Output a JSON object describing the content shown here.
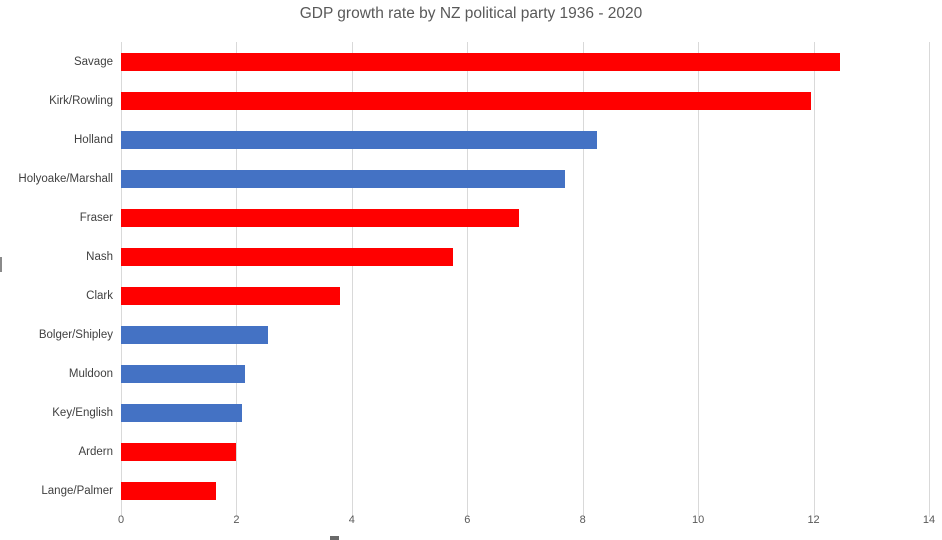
{
  "page": {
    "background": "#ffffff"
  },
  "chart_data": {
    "type": "bar",
    "orientation": "horizontal",
    "title": "GDP growth rate by NZ political party 1936 - 2020",
    "categories": [
      "Savage",
      "Kirk/Rowling",
      "Holland",
      "Holyoake/Marshall",
      "Fraser",
      "Nash",
      "Clark",
      "Bolger/Shipley",
      "Muldoon",
      "Key/English",
      "Ardern",
      "Lange/Palmer"
    ],
    "values": [
      12.45,
      11.95,
      8.25,
      7.7,
      6.9,
      5.75,
      3.8,
      2.55,
      2.15,
      2.1,
      2.0,
      1.65
    ],
    "bar_colors": [
      "#ff0000",
      "#ff0000",
      "#4472c4",
      "#4472c4",
      "#ff0000",
      "#ff0000",
      "#ff0000",
      "#4472c4",
      "#4472c4",
      "#4472c4",
      "#ff0000",
      "#ff0000"
    ],
    "xlabel": "",
    "ylabel": "",
    "xlim": [
      0,
      14
    ],
    "xticks": [
      0,
      2,
      4,
      6,
      8,
      10,
      12,
      14
    ],
    "grid": "vertical-only",
    "legend": "none",
    "colors": {
      "red_bar": "#ff0000",
      "blue_bar": "#4472c4",
      "gridline": "#d9d9d9",
      "title_text": "#595959",
      "category_text": "#404040",
      "tick_text": "#595959"
    }
  }
}
